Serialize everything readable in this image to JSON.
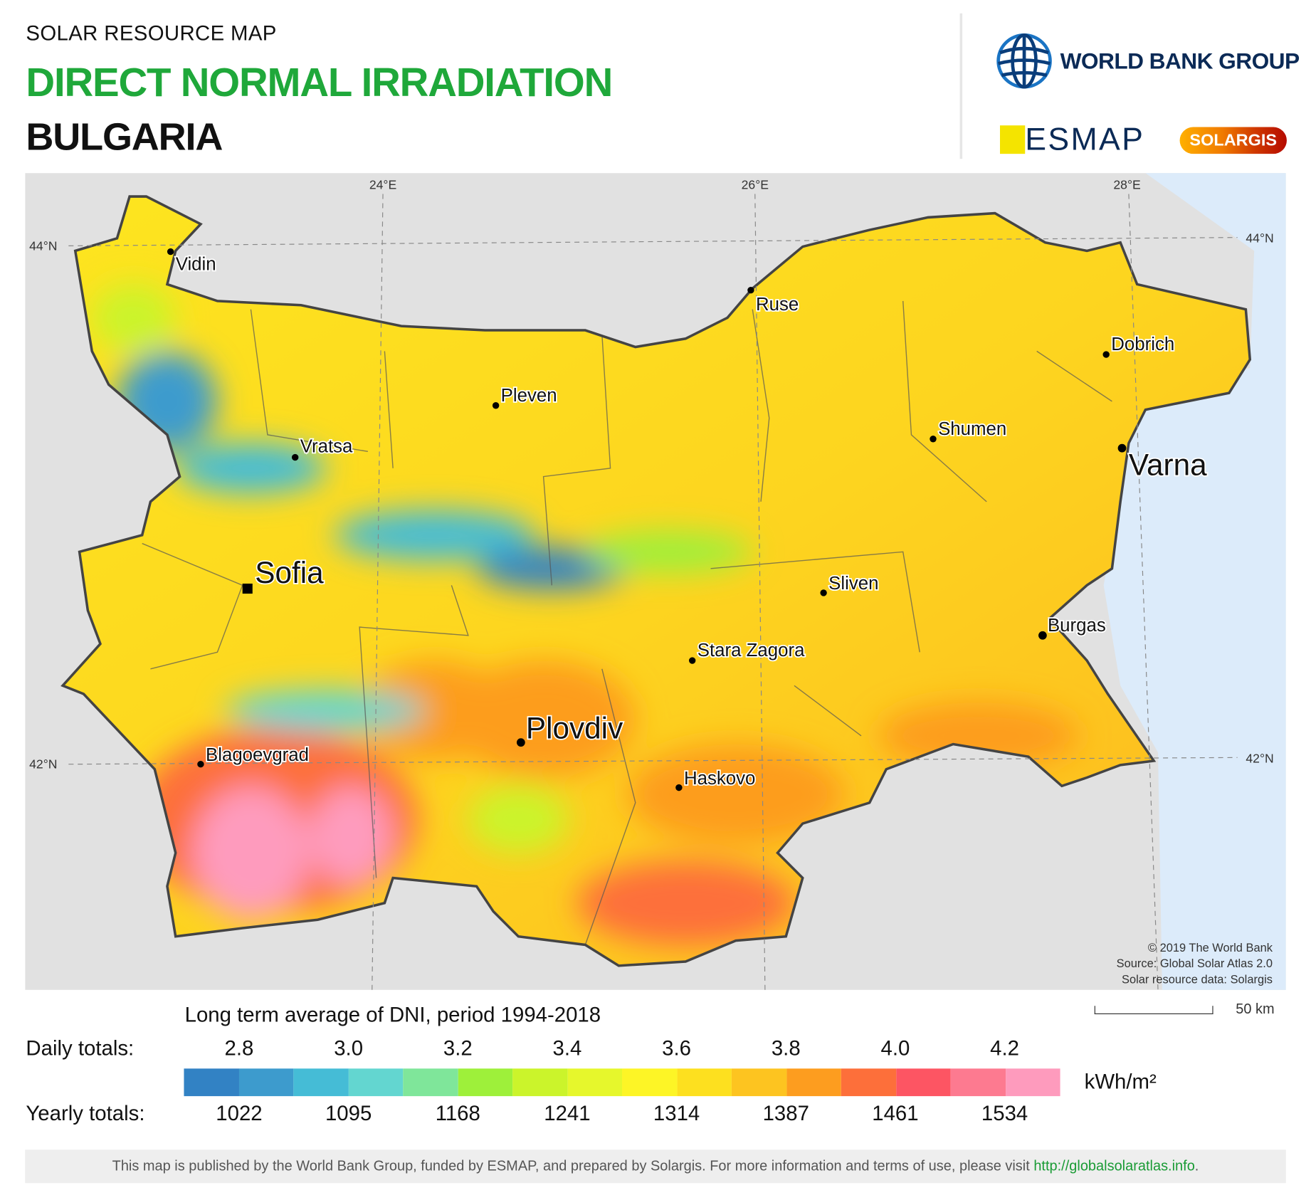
{
  "header": {
    "kicker": "SOLAR RESOURCE MAP",
    "title": "DIRECT NORMAL IRRADIATION",
    "country": "BULGARIA"
  },
  "logos": {
    "world_bank": "WORLD BANK GROUP",
    "esmap": "ESMAP",
    "solargis": "SOLARGIS"
  },
  "map": {
    "longitudes": [
      "24°E",
      "26°E",
      "28°E"
    ],
    "latitudes": [
      "44°N",
      "42°N"
    ],
    "cities": [
      {
        "name": "Vidin"
      },
      {
        "name": "Ruse"
      },
      {
        "name": "Dobrich"
      },
      {
        "name": "Pleven"
      },
      {
        "name": "Vratsa"
      },
      {
        "name": "Shumen"
      },
      {
        "name": "Varna"
      },
      {
        "name": "Sofia"
      },
      {
        "name": "Sliven"
      },
      {
        "name": "Burgas"
      },
      {
        "name": "Stara Zagora"
      },
      {
        "name": "Plovdiv"
      },
      {
        "name": "Blagoevgrad"
      },
      {
        "name": "Haskovo"
      }
    ],
    "credits": [
      "© 2019 The World Bank",
      "Source: Global Solar Atlas 2.0",
      "Solar resource data: Solargis"
    ],
    "scale_label": "50 km"
  },
  "legend": {
    "title": "Long term average of DNI, period 1994-2018",
    "daily_label": "Daily totals:",
    "yearly_label": "Yearly totals:",
    "daily_ticks": [
      "2.8",
      "3.0",
      "3.2",
      "3.4",
      "3.6",
      "3.8",
      "4.0",
      "4.2"
    ],
    "yearly_ticks": [
      "1022",
      "1095",
      "1168",
      "1241",
      "1314",
      "1387",
      "1461",
      "1534"
    ],
    "unit": "kWh/m²",
    "colors": [
      "#3282c4",
      "#3d9bcd",
      "#45bcd6",
      "#63d6d0",
      "#7fe69a",
      "#9ef03a",
      "#cbf42b",
      "#e6f72c",
      "#fdf526",
      "#fde01f",
      "#fdc420",
      "#fd9d1f",
      "#fd6f3a",
      "#fd5563",
      "#fd7a90",
      "#fe9bbd"
    ]
  },
  "footer": {
    "text": "This map is published by the World Bank Group, funded by ESMAP, and prepared by Solargis. For more information and terms of use, please visit ",
    "link": "http://globalsolaratlas.info",
    "end": "."
  }
}
